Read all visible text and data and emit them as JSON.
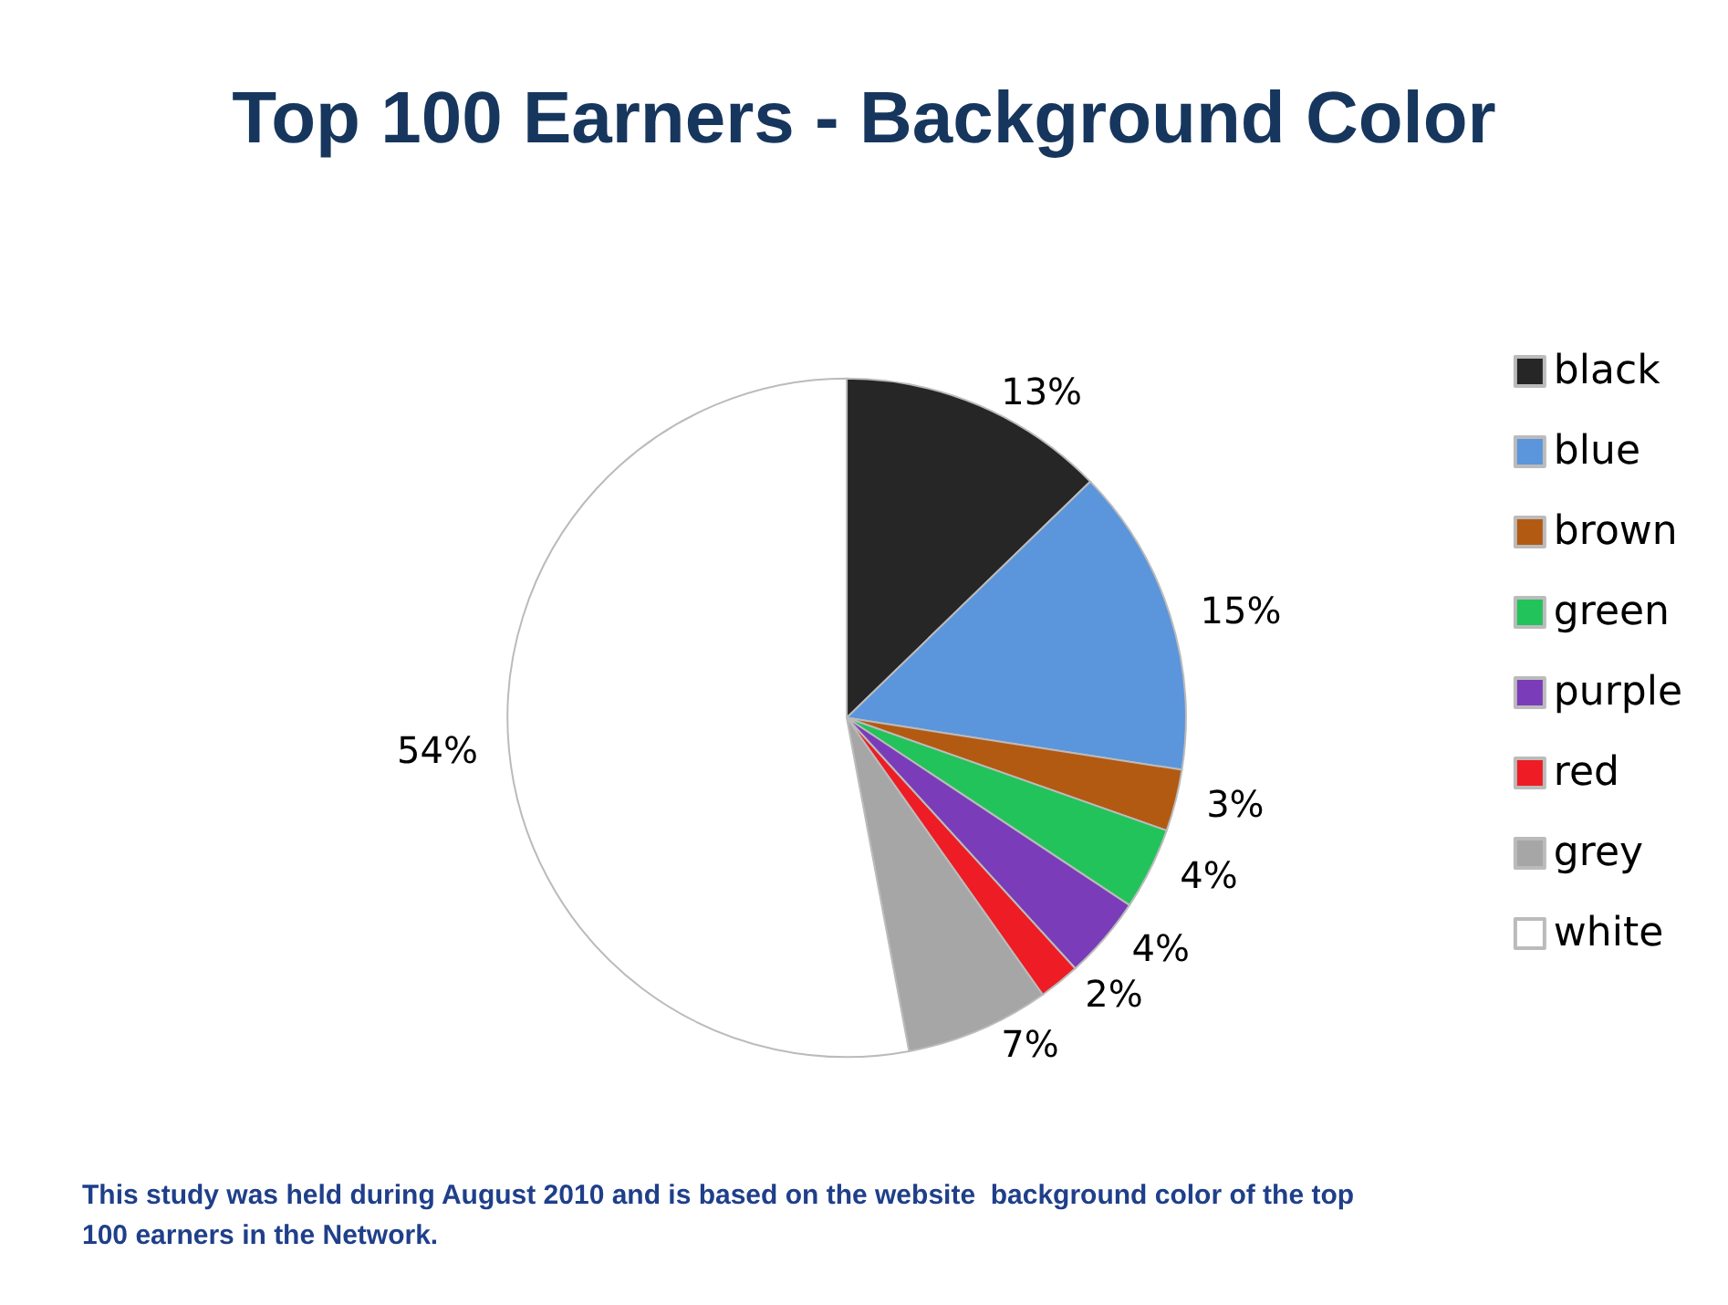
{
  "chart_data": {
    "type": "pie",
    "title": "Top 100 Earners - Background Color",
    "categories": [
      "black",
      "blue",
      "brown",
      "green",
      "purple",
      "red",
      "grey",
      "white"
    ],
    "values": [
      13,
      15,
      3,
      4,
      4,
      2,
      7,
      54
    ],
    "colors": [
      "#262626",
      "#5b95dc",
      "#b35a12",
      "#22c35a",
      "#7a3cb8",
      "#ee1c24",
      "#a6a6a6",
      "#ffffff"
    ],
    "value_labels": [
      "13%",
      "15%",
      "3%",
      "4%",
      "4%",
      "2%",
      "7%",
      "54%"
    ],
    "legend": "right",
    "annotations": [
      "This study was held during August 2010 and is based on the website  background color of the top 100 earners in the Network."
    ]
  }
}
